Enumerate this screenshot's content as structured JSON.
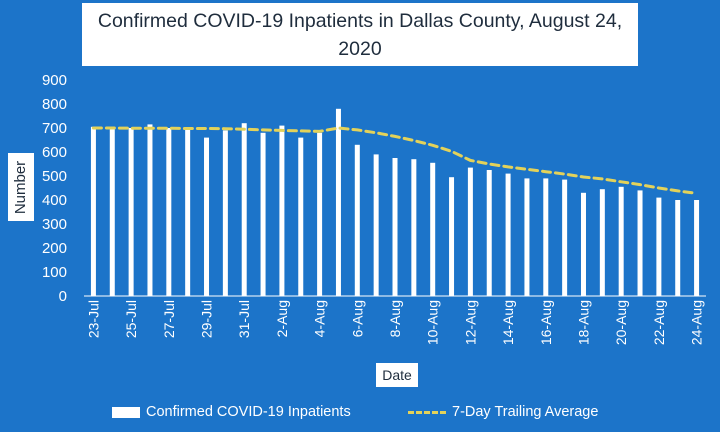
{
  "chart_data": {
    "type": "bar",
    "title": "Confirmed COVID-19 Inpatients in Dallas County, August 24, 2020",
    "xlabel": "Date",
    "ylabel": "Number",
    "ylim": [
      0,
      900
    ],
    "yticks": [
      0,
      100,
      200,
      300,
      400,
      500,
      600,
      700,
      800,
      900
    ],
    "grid": false,
    "legend_position": "bottom",
    "x": [
      "23-Jul",
      "24-Jul",
      "25-Jul",
      "26-Jul",
      "27-Jul",
      "28-Jul",
      "29-Jul",
      "30-Jul",
      "31-Jul",
      "1-Aug",
      "2-Aug",
      "3-Aug",
      "4-Aug",
      "5-Aug",
      "6-Aug",
      "7-Aug",
      "8-Aug",
      "9-Aug",
      "10-Aug",
      "11-Aug",
      "12-Aug",
      "13-Aug",
      "14-Aug",
      "15-Aug",
      "16-Aug",
      "17-Aug",
      "18-Aug",
      "19-Aug",
      "20-Aug",
      "21-Aug",
      "22-Aug",
      "23-Aug",
      "24-Aug"
    ],
    "xtick_labels": [
      "23-Jul",
      "25-Jul",
      "27-Jul",
      "29-Jul",
      "31-Jul",
      "2-Aug",
      "4-Aug",
      "6-Aug",
      "8-Aug",
      "10-Aug",
      "12-Aug",
      "14-Aug",
      "16-Aug",
      "18-Aug",
      "20-Aug",
      "22-Aug",
      "24-Aug"
    ],
    "series": [
      {
        "name": "Confirmed COVID-19 Inpatients",
        "type": "bar",
        "color": "#ffffff",
        "values": [
          705,
          695,
          700,
          715,
          700,
          695,
          660,
          690,
          720,
          680,
          710,
          660,
          680,
          780,
          630,
          590,
          575,
          570,
          555,
          495,
          535,
          525,
          510,
          490,
          490,
          485,
          430,
          445,
          455,
          440,
          410,
          400,
          400
        ]
      },
      {
        "name": "7-Day Trailing Average",
        "type": "line",
        "style": "dashed",
        "color": "#e3d25a",
        "values": [
          700,
          700,
          699,
          699,
          699,
          698,
          698,
          697,
          695,
          692,
          690,
          688,
          686,
          700,
          692,
          680,
          665,
          648,
          628,
          603,
          565,
          550,
          538,
          528,
          518,
          508,
          496,
          488,
          476,
          464,
          450,
          438,
          428
        ]
      }
    ]
  }
}
